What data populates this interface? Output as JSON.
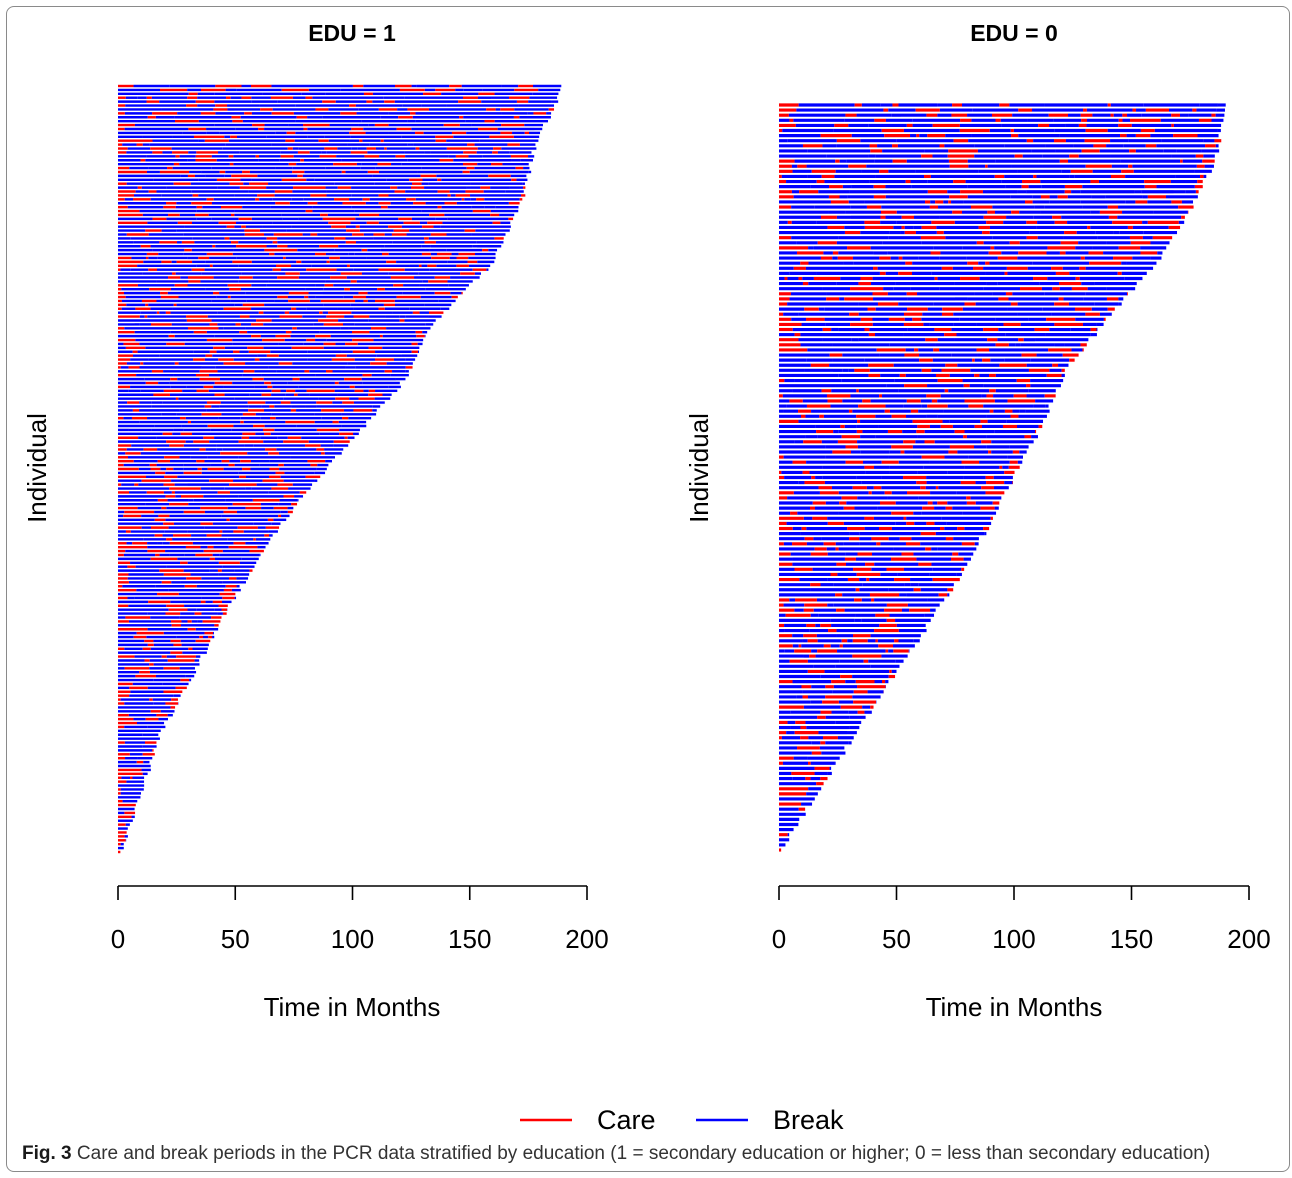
{
  "figure": {
    "caption_label": "Fig. 3",
    "caption_text": "Care and break periods in the PCR data stratified by education (1 = secondary education or higher; 0 = less than secondary education)"
  },
  "legend": {
    "placement": "bottom-center",
    "items": [
      {
        "label": "Care",
        "color": "#ff0000"
      },
      {
        "label": "Break",
        "color": "#0000ff"
      }
    ]
  },
  "chart_data": [
    {
      "type": "bar",
      "subtype": "horizontal-segmented-timeline",
      "title": "EDU = 1",
      "xlabel": "Time in Months",
      "ylabel": "Individual",
      "xlim": [
        0,
        200
      ],
      "xticks": [
        0,
        50,
        100,
        150,
        200
      ],
      "n_individuals": 197,
      "max_followup_months": 190,
      "followup_length_profile_months": [
        190,
        178,
        172,
        160,
        135,
        122,
        100,
        78,
        60,
        45,
        32,
        18,
        10,
        1
      ],
      "series": [
        {
          "name": "Care",
          "color": "#ff0000"
        },
        {
          "name": "Break",
          "color": "#0000ff"
        }
      ]
    },
    {
      "type": "bar",
      "subtype": "horizontal-segmented-timeline",
      "title": "EDU = 0",
      "xlabel": "Time in Months",
      "ylabel": "Individual",
      "xlim": [
        0,
        200
      ],
      "xticks": [
        0,
        50,
        100,
        150,
        200
      ],
      "n_individuals": 147,
      "max_followup_months": 190,
      "followup_length_profile_months": [
        190,
        186,
        175,
        160,
        140,
        122,
        112,
        100,
        88,
        75,
        60,
        45,
        30,
        15,
        1
      ],
      "series": [
        {
          "name": "Care",
          "color": "#ff0000"
        },
        {
          "name": "Break",
          "color": "#0000ff"
        }
      ]
    }
  ]
}
